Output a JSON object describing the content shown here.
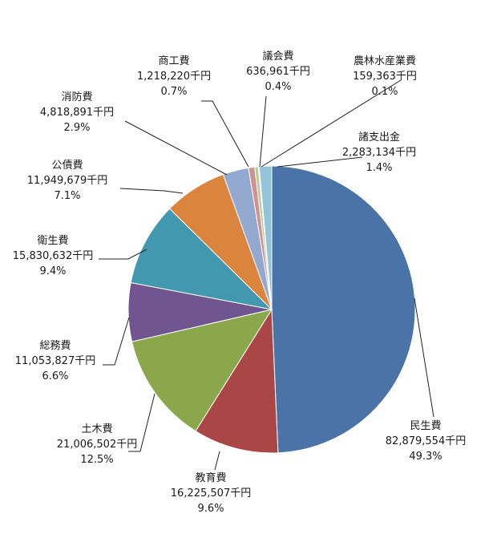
{
  "chart_data": {
    "type": "pie",
    "unit": "千円",
    "start": "12 o'clock",
    "direction": "clockwise",
    "legend": "none",
    "slices": [
      {
        "name": "民生費",
        "value": "82,879,554千円",
        "percent": "49.3%",
        "pct": 49.3,
        "color": "#4a74a8"
      },
      {
        "name": "教育費",
        "value": "16,225,507千円",
        "percent": "9.6%",
        "pct": 9.6,
        "color": "#aa4746"
      },
      {
        "name": "土木費",
        "value": "21,006,502千円",
        "percent": "12.5%",
        "pct": 12.5,
        "color": "#8aa84b"
      },
      {
        "name": "総務費",
        "value": "11,053,827千円",
        "percent": "6.6%",
        "pct": 6.6,
        "color": "#715591"
      },
      {
        "name": "衛生費",
        "value": "15,830,632千円",
        "percent": "9.4%",
        "pct": 9.4,
        "color": "#4198af"
      },
      {
        "name": "公債費",
        "value": "11,949,679千円",
        "percent": "7.1%",
        "pct": 7.1,
        "color": "#db843d"
      },
      {
        "name": "消防費",
        "value": "4,818,891千円",
        "percent": "2.9%",
        "pct": 2.9,
        "color": "#93a9cf"
      },
      {
        "name": "商工費",
        "value": "1,218,220千円",
        "percent": "0.7%",
        "pct": 0.7,
        "color": "#d19392"
      },
      {
        "name": "議会費",
        "value": "636,961千円",
        "percent": "0.4%",
        "pct": 0.4,
        "color": "#b9cd96"
      },
      {
        "name": "農林水産業費",
        "value": "159,363千円",
        "percent": "0.1%",
        "pct": 0.1,
        "color": "#a99bbd"
      },
      {
        "name": "諸支出金",
        "value": "2,283,134千円",
        "percent": "1.4%",
        "pct": 1.4,
        "color": "#92c5d9"
      }
    ]
  }
}
